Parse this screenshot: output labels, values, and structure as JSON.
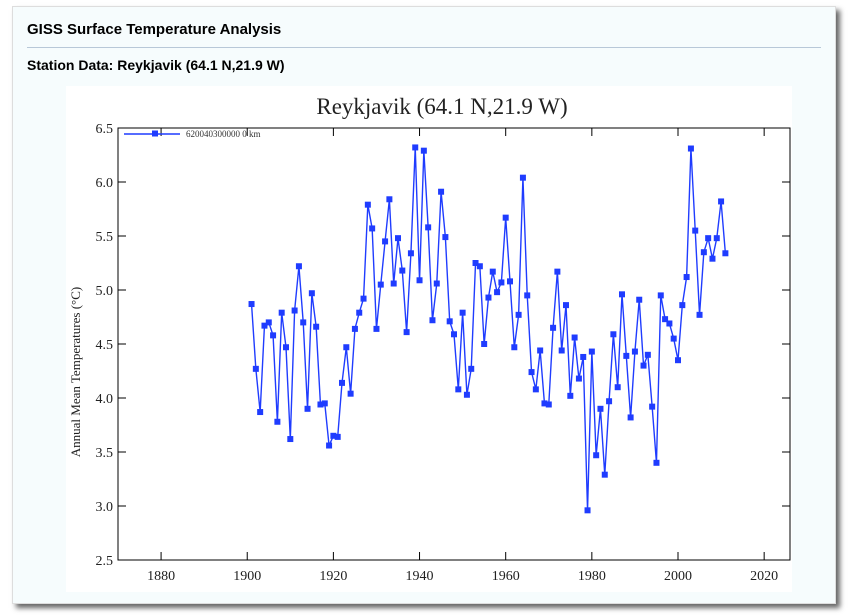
{
  "header": {
    "title": "GISS Surface Temperature Analysis",
    "subtitle": "Station Data: Reykjavik (64.1 N,21.9 W)"
  },
  "colors": {
    "series": "#1f3cff",
    "background": "#f6fcfd"
  },
  "chart_data": {
    "type": "line",
    "title": "Reykjavik (64.1 N,21.9 W)",
    "xlabel": "",
    "ylabel": "Annual Mean Temperatures (°C)",
    "xlim": [
      1870,
      2026
    ],
    "ylim": [
      2.5,
      6.5
    ],
    "xticks": [
      1880,
      1900,
      1920,
      1940,
      1960,
      1980,
      2000,
      2020
    ],
    "yticks": [
      "2.5",
      "3.0",
      "3.5",
      "4.0",
      "4.5",
      "5.0",
      "5.5",
      "6.0",
      "6.5"
    ],
    "legend_position": "top-left",
    "series": [
      {
        "name": "620040300000  0 km",
        "x_start": 1901,
        "values": [
          4.87,
          4.27,
          3.87,
          4.67,
          4.7,
          4.58,
          3.78,
          4.79,
          4.47,
          3.62,
          4.81,
          5.22,
          4.7,
          3.9,
          4.97,
          4.66,
          3.94,
          3.95,
          3.56,
          3.65,
          3.64,
          4.14,
          4.47,
          4.04,
          4.64,
          4.79,
          4.92,
          5.79,
          5.57,
          4.64,
          5.05,
          5.45,
          5.84,
          5.06,
          5.48,
          5.18,
          4.61,
          5.34,
          6.32,
          5.09,
          6.29,
          5.58,
          4.72,
          5.06,
          5.91,
          5.49,
          4.71,
          4.59,
          4.08,
          4.79,
          4.03,
          4.27,
          5.25,
          5.22,
          4.5,
          4.93,
          5.17,
          4.98,
          5.07,
          5.67,
          5.08,
          4.47,
          4.77,
          6.04,
          4.95,
          4.24,
          4.08,
          4.44,
          3.95,
          3.94,
          4.65,
          5.17,
          4.44,
          4.86,
          4.02,
          4.56,
          4.18,
          4.38,
          2.96,
          4.43,
          3.47,
          3.9,
          3.29,
          3.97,
          4.59,
          4.1,
          4.96,
          4.39,
          3.82,
          4.43,
          4.91,
          4.3,
          4.4,
          3.92,
          3.4,
          4.95,
          4.73,
          4.69,
          4.55,
          4.35,
          4.86,
          5.12,
          6.31,
          5.55,
          4.77,
          5.35,
          5.48,
          5.29,
          5.48,
          5.82,
          5.34
        ]
      }
    ]
  }
}
